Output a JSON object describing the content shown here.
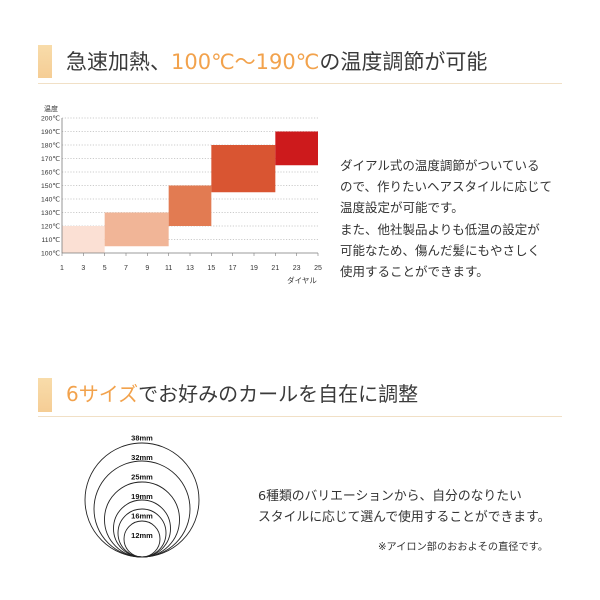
{
  "colors": {
    "accent": "#f2a24c",
    "heading_bar": "#f5cd95",
    "rule": "#f1e0c6",
    "text": "#333333"
  },
  "heating": {
    "heading": [
      "急速加熱、",
      "100℃～190℃",
      "の温度調節が可能"
    ],
    "description": [
      "ダイアル式の温度調節がついている",
      "ので、作りたいヘアスタイルに応じて",
      "温度設定が可能です。",
      "また、他社製品よりも低温の設定が",
      "可能なため、傷んだ髪にもやさしく",
      "使用することができます。"
    ]
  },
  "sizes": {
    "heading": [
      "6サイズ",
      "でお好みのカールを自在に調整"
    ],
    "barrels": [
      {
        "label": "38mm",
        "mm": 38
      },
      {
        "label": "32mm",
        "mm": 32
      },
      {
        "label": "25mm",
        "mm": 25
      },
      {
        "label": "19mm",
        "mm": 19
      },
      {
        "label": "16mm",
        "mm": 16
      },
      {
        "label": "12mm",
        "mm": 12
      }
    ],
    "description": [
      "6種類のバリエーションから、自分のなりたい",
      "スタイルに応じて選んで使用することができます。"
    ],
    "note": "※アイロン部のおおよその直径です。"
  },
  "chart_data": {
    "type": "bar",
    "title": "",
    "ylabel": "温度",
    "xlabel": "ダイヤル",
    "xlim": [
      1,
      25
    ],
    "ylim": [
      100,
      200
    ],
    "grid": true,
    "x_ticks": [
      1,
      3,
      5,
      7,
      9,
      11,
      13,
      15,
      17,
      19,
      21,
      23,
      25
    ],
    "y_ticks": [
      100,
      110,
      120,
      130,
      140,
      150,
      160,
      170,
      180,
      190,
      200
    ],
    "y_tick_labels": [
      "100℃",
      "110℃",
      "120℃",
      "130℃",
      "140℃",
      "150℃",
      "160℃",
      "170℃",
      "180℃",
      "190℃",
      "200℃"
    ],
    "ranges": [
      {
        "dial": [
          1,
          5
        ],
        "temp": [
          100,
          120
        ],
        "color": "#fbe0d4"
      },
      {
        "dial": [
          5,
          11
        ],
        "temp": [
          105,
          130
        ],
        "color": "#f1b597"
      },
      {
        "dial": [
          11,
          15
        ],
        "temp": [
          120,
          150
        ],
        "color": "#e27b52"
      },
      {
        "dial": [
          15,
          21
        ],
        "temp": [
          145,
          180
        ],
        "color": "#d95532"
      },
      {
        "dial": [
          21,
          25
        ],
        "temp": [
          165,
          190
        ],
        "color": "#cd1a1c"
      }
    ]
  }
}
